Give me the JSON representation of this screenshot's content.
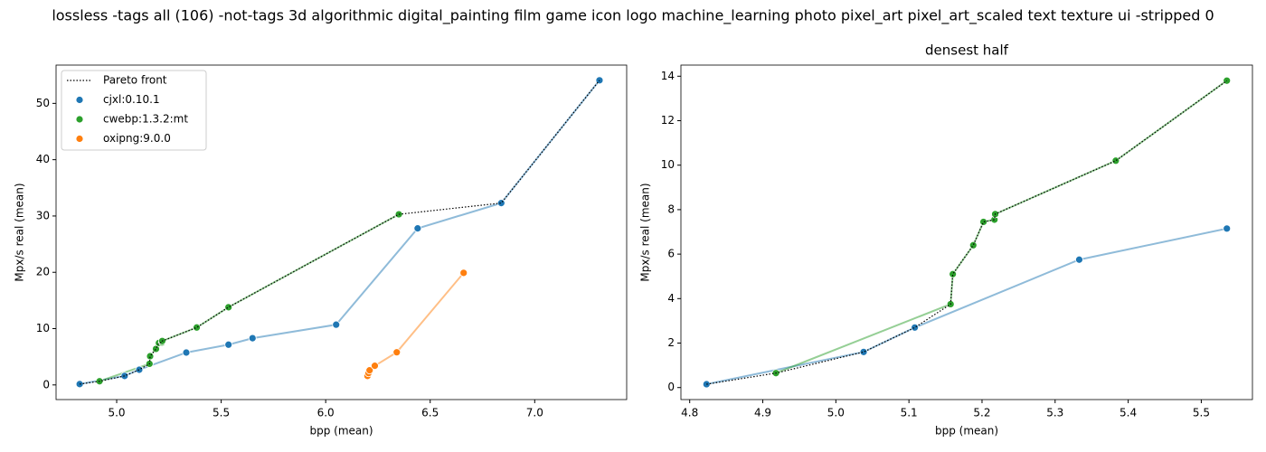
{
  "title": "lossless -tags all (106) -not-tags 3d algorithmic digital_painting film game icon logo machine_learning photo pixel_art pixel_art_scaled text texture ui -stripped 0",
  "chart_data": [
    {
      "type": "scatter",
      "xlabel": "bpp (mean)",
      "ylabel": "Mpx/s real (mean)",
      "legend": "upper left",
      "xlim": [
        4.71,
        7.44
      ],
      "ylim": [
        -2.6,
        56.8
      ],
      "xticks": [
        {
          "value": 5,
          "label": "5.0"
        },
        5.5,
        {
          "value": 6,
          "label": "6.0"
        },
        6.5,
        {
          "value": 7,
          "label": "7.0"
        }
      ],
      "yticks": [
        0,
        10,
        20,
        30,
        40,
        50
      ],
      "series": [
        {
          "name": "Pareto front",
          "type": "line",
          "color": "#000000",
          "x": [
            4.823,
            4.918,
            5.038,
            5.108,
            5.157,
            5.16,
            5.188,
            5.202,
            5.217,
            5.218,
            5.383,
            5.535,
            6.35,
            6.84,
            7.31
          ],
          "values": [
            0.15,
            0.65,
            1.6,
            2.7,
            3.75,
            5.1,
            6.4,
            7.45,
            7.55,
            7.8,
            10.2,
            13.8,
            30.3,
            32.3,
            54.1
          ]
        },
        {
          "name": "cjxl:0.10.1",
          "type": "scatter",
          "color": "#1f77b4",
          "x": [
            4.823,
            5.038,
            5.108,
            5.333,
            5.535,
            5.65,
            6.05,
            6.44,
            6.84,
            7.31
          ],
          "values": [
            0.15,
            1.6,
            2.7,
            5.75,
            7.15,
            8.3,
            10.7,
            27.8,
            32.3,
            54.1
          ]
        },
        {
          "name": "cwebp:1.3.2:mt",
          "type": "scatter",
          "color": "#2ca02c",
          "x": [
            4.918,
            5.157,
            5.16,
            5.188,
            5.202,
            5.217,
            5.218,
            5.383,
            5.535,
            6.35
          ],
          "values": [
            0.65,
            3.75,
            5.1,
            6.4,
            7.45,
            7.55,
            7.8,
            10.2,
            13.8,
            30.3
          ]
        },
        {
          "name": "oxipng:9.0.0",
          "type": "scatter",
          "color": "#ff7f0e",
          "x": [
            6.2,
            6.205,
            6.21,
            6.235,
            6.34,
            6.66
          ],
          "values": [
            1.6,
            2.1,
            2.6,
            3.4,
            5.8,
            19.9
          ]
        }
      ]
    },
    {
      "type": "scatter",
      "title": "densest half",
      "xlabel": "bpp (mean)",
      "ylabel": "Mpx/s real (mean)",
      "xlim": [
        4.788,
        5.57
      ],
      "ylim": [
        -0.54,
        14.5
      ],
      "xticks": [
        4.8,
        4.9,
        {
          "value": 5,
          "label": "5.0"
        },
        5.1,
        5.2,
        5.3,
        5.4,
        5.5
      ],
      "yticks": [
        0,
        2,
        4,
        6,
        8,
        10,
        12,
        14
      ],
      "series": [
        {
          "name": "Pareto front",
          "type": "line",
          "color": "#000000",
          "x": [
            4.823,
            4.918,
            5.038,
            5.108,
            5.157,
            5.16,
            5.188,
            5.202,
            5.217,
            5.218,
            5.383,
            5.535
          ],
          "values": [
            0.15,
            0.65,
            1.6,
            2.7,
            3.75,
            5.1,
            6.4,
            7.45,
            7.55,
            7.8,
            10.2,
            13.8
          ]
        },
        {
          "name": "cjxl:0.10.1",
          "type": "scatter",
          "color": "#1f77b4",
          "x": [
            4.823,
            5.038,
            5.108,
            5.333,
            5.535
          ],
          "values": [
            0.15,
            1.6,
            2.7,
            5.75,
            7.15
          ]
        },
        {
          "name": "cwebp:1.3.2:mt",
          "type": "scatter",
          "color": "#2ca02c",
          "x": [
            4.918,
            5.157,
            5.16,
            5.188,
            5.202,
            5.217,
            5.218,
            5.383,
            5.535
          ],
          "values": [
            0.65,
            3.75,
            5.1,
            6.4,
            7.45,
            7.55,
            7.8,
            10.2,
            13.8
          ]
        }
      ]
    }
  ]
}
